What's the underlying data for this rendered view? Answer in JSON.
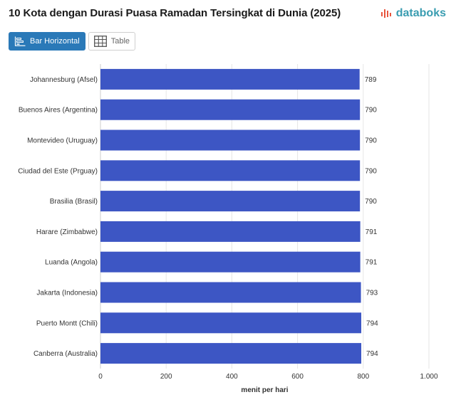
{
  "header": {
    "title": "10 Kota dengan Durasi Puasa Ramadan Tersingkat di Dunia (2025)",
    "brand": "databoks"
  },
  "toolbar": {
    "tabs": [
      {
        "label": "Bar Horizontal",
        "active": true
      },
      {
        "label": "Table",
        "active": false
      }
    ]
  },
  "colors": {
    "bar": "#3d56c4",
    "accent": "#2a79b8",
    "brand": "#3a9db1",
    "brand_icon": "#e8553e"
  },
  "chart_data": {
    "type": "bar",
    "orientation": "horizontal",
    "categories": [
      "Johannesburg (Afsel)",
      "Buenos Aires (Argentina)",
      "Montevideo (Uruguay)",
      "Ciudad del Este (Prguay)",
      "Brasilia (Brasil)",
      "Harare (Zimbabwe)",
      "Luanda (Angola)",
      "Jakarta (Indonesia)",
      "Puerto Montt (Chili)",
      "Canberra (Australia)"
    ],
    "values": [
      789,
      790,
      790,
      790,
      790,
      791,
      791,
      793,
      794,
      794
    ],
    "value_labels": [
      "789",
      "790",
      "790",
      "790",
      "790",
      "791",
      "791",
      "793",
      "794",
      "794"
    ],
    "xlabel": "menit per hari",
    "xlim": [
      0,
      1000
    ],
    "xticks": [
      0,
      200,
      400,
      600,
      800,
      1000
    ],
    "xtick_labels": [
      "0",
      "200",
      "400",
      "600",
      "800",
      "1.000"
    ],
    "grid": true
  }
}
